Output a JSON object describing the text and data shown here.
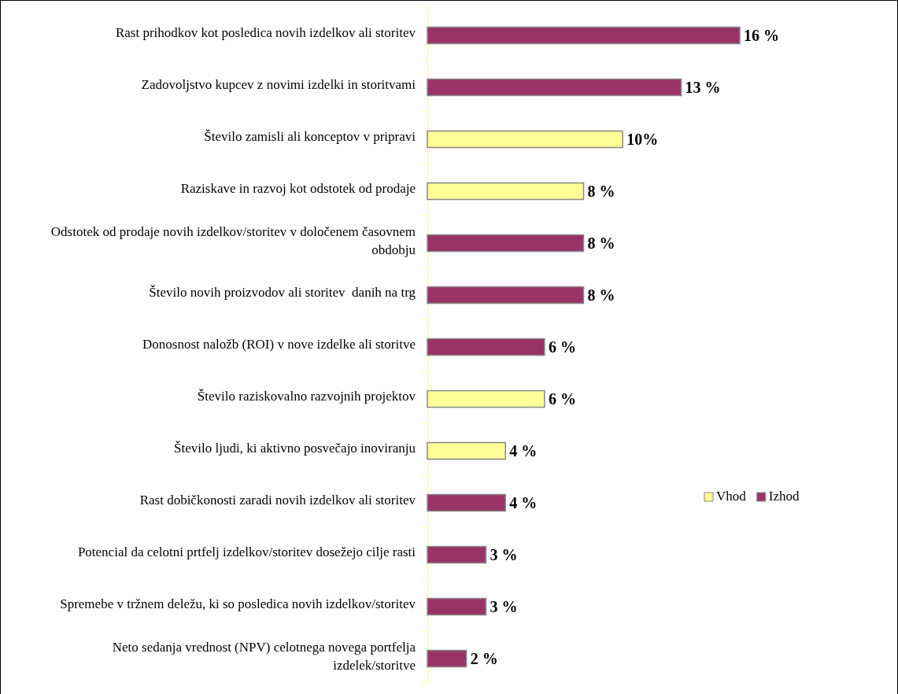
{
  "chart_data": {
    "type": "bar",
    "orientation": "horizontal",
    "legend": "right",
    "categories": [
      "Rast prihodkov kot posledica novih izdelkov ali storitev",
      "Zadovoljstvo kupcev z novimi izdelki in storitvami",
      "Število zamisli ali konceptov v pripravi",
      "Raziskave in razvoj kot odstotek od prodaje",
      "Odstotek od prodaje novih izdelkov/storitev v določenem časovnem obdobju",
      "Število novih proizvodov ali storitev  danih na trg",
      "Donosnost naložb (ROI) v nove izdelke ali storitve",
      "Število raziskovalno razvojnih projektov",
      "Število ljudi, ki aktivno posvečajo inoviranju",
      "Rast dobičkonosti zaradi novih izdelkov ali storitev",
      "Potencial da celotni prtfelj izdelkov/storitev dosežejo cilje rasti",
      "Spremebe v tržnem deležu, ki so posledica novih izdelkov/storitev",
      "Neto sedanja vrednost (NPV) celotnega novega portfelja izdelek/storitve"
    ],
    "series": [
      {
        "name": "Vhod",
        "color": "#ffff99",
        "values": [
          null,
          null,
          10,
          8,
          null,
          null,
          null,
          6,
          4,
          null,
          null,
          null,
          null
        ],
        "value_labels": [
          null,
          null,
          "10%",
          "8 %",
          null,
          null,
          null,
          "6 %",
          "4 %",
          null,
          null,
          null,
          null
        ]
      },
      {
        "name": "Izhod",
        "color": "#993366",
        "values": [
          16,
          13,
          null,
          null,
          8,
          8,
          6,
          null,
          null,
          4,
          3,
          3,
          2
        ],
        "value_labels": [
          "16 %",
          "13 %",
          null,
          null,
          "8 %",
          "8 %",
          "6 %",
          null,
          null,
          "4 %",
          "3 %",
          "3 %",
          "2 %"
        ]
      }
    ]
  }
}
